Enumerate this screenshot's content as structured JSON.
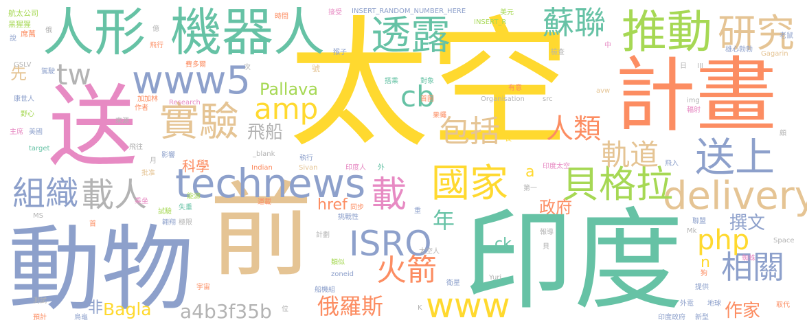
{
  "words": [
    {
      "text": "太空",
      "color": "#ffd92f"
    },
    {
      "text": "印度",
      "color": "#66c2a5"
    },
    {
      "text": "送",
      "color": "#e78ac3"
    },
    {
      "text": "前",
      "color": "#e5c494"
    },
    {
      "text": "動物",
      "color": "#8da0cb"
    },
    {
      "text": "計畫",
      "color": "#fc8d62"
    },
    {
      "text": "人形",
      "color": "#66c2a5"
    },
    {
      "text": "機器人",
      "color": "#66c2a5"
    },
    {
      "text": "推動",
      "color": "#a6d854"
    },
    {
      "text": "研究",
      "color": "#e5c494"
    },
    {
      "text": "technews",
      "color": "#8da0cb"
    },
    {
      "text": "delivery",
      "color": "#e5c494"
    },
    {
      "text": "送上",
      "color": "#8da0cb"
    },
    {
      "text": "貝格拉",
      "color": "#a6d854"
    },
    {
      "text": "國家",
      "color": "#ffd92f"
    },
    {
      "text": "實驗",
      "color": "#e5c494"
    },
    {
      "text": "www5",
      "color": "#8da0cb"
    },
    {
      "text": "透露",
      "color": "#66c2a5"
    },
    {
      "text": "蘇聯",
      "color": "#66c2a5"
    },
    {
      "text": "組織",
      "color": "#8da0cb"
    },
    {
      "text": "載人",
      "color": "#b3b3b3"
    },
    {
      "text": "ISRO",
      "color": "#8da0cb"
    },
    {
      "text": "www",
      "color": "#ffd92f"
    },
    {
      "text": "火箭",
      "color": "#fc8d62"
    },
    {
      "text": "相關",
      "color": "#8da0cb"
    },
    {
      "text": "載",
      "color": "#e78ac3"
    },
    {
      "text": "包括",
      "color": "#e5c494"
    },
    {
      "text": "人類",
      "color": "#fc8d62"
    },
    {
      "text": "軌道",
      "color": "#e5c494"
    },
    {
      "text": "amp",
      "color": "#ffd92f"
    },
    {
      "text": "php",
      "color": "#ffd92f"
    },
    {
      "text": "cb",
      "color": "#66c2a5"
    },
    {
      "text": "tw",
      "color": "#b3b3b3"
    },
    {
      "text": "飛船",
      "color": "#b3b3b3"
    },
    {
      "text": "俄羅斯",
      "color": "#fc8d62"
    },
    {
      "text": "a4b3f35b",
      "color": "#b3b3b3"
    },
    {
      "text": "Bagla",
      "color": "#ffd92f"
    },
    {
      "text": "非",
      "color": "#8da0cb"
    },
    {
      "text": "撰文",
      "color": "#8da0cb"
    },
    {
      "text": "作家",
      "color": "#fc8d62"
    },
    {
      "text": "年",
      "color": "#66c2a5"
    },
    {
      "text": "政府",
      "color": "#fc8d62"
    },
    {
      "text": "Pallava",
      "color": "#a6d854"
    },
    {
      "text": "href",
      "color": "#fc8d62"
    },
    {
      "text": "科學",
      "color": "#fc8d62"
    },
    {
      "text": "先",
      "color": "#e5c494"
    },
    {
      "text": "ck",
      "color": "#66c2a5"
    },
    {
      "text": "n",
      "color": "#ffd92f"
    },
    {
      "text": "a",
      "color": "#ffd92f"
    },
    {
      "text": "號",
      "color": "#e5c494"
    },
    {
      "text": "航太公司",
      "color": "#a6d854"
    },
    {
      "text": "黑猩猩",
      "color": "#a6d854"
    },
    {
      "text": "席萬",
      "color": "#fc8d62"
    },
    {
      "text": "說",
      "color": "#8da0cb"
    },
    {
      "text": "GSLV",
      "color": "#b3b3b3"
    },
    {
      "text": "駕駛",
      "color": "#8da0cb"
    },
    {
      "text": "康世人",
      "color": "#8da0cb"
    },
    {
      "text": "野心",
      "color": "#a6d854"
    },
    {
      "text": "主席",
      "color": "#e78ac3"
    },
    {
      "text": "美國",
      "color": "#8da0cb"
    },
    {
      "text": "target",
      "color": "#66c2a5"
    },
    {
      "text": "加加林",
      "color": "#fc8d62"
    },
    {
      "text": "作者",
      "color": "#fc8d62"
    },
    {
      "text": "Research",
      "color": "#e78ac3"
    },
    {
      "text": "來源",
      "color": "#b3b3b3"
    },
    {
      "text": "飛往",
      "color": "#b3b3b3"
    },
    {
      "text": "影響",
      "color": "#8da0cb"
    },
    {
      "text": "批准",
      "color": "#e5c494"
    },
    {
      "text": "乘坐",
      "color": "#e78ac3"
    },
    {
      "text": "試驗",
      "color": "#a6d854"
    },
    {
      "text": "失重",
      "color": "#66c2a5"
    },
    {
      "text": "翱翔",
      "color": "#8da0cb"
    },
    {
      "text": "極限",
      "color": "#b3b3b3"
    },
    {
      "text": "能源",
      "color": "#a6d854"
    },
    {
      "text": "運載",
      "color": "#fc8d62"
    },
    {
      "text": "計劃",
      "color": "#b3b3b3"
    },
    {
      "text": "類似",
      "color": "#a6d854"
    },
    {
      "text": "zoneid",
      "color": "#8da0cb"
    },
    {
      "text": "船機組",
      "color": "#8da0cb"
    },
    {
      "text": "宇宙",
      "color": "#fc8d62"
    },
    {
      "text": "測試",
      "color": "#b3b3b3"
    },
    {
      "text": "預計",
      "color": "#fc8d62"
    },
    {
      "text": "烏龜",
      "color": "#8da0cb"
    },
    {
      "text": "位",
      "color": "#b3b3b3"
    },
    {
      "text": "MS",
      "color": "#b3b3b3"
    },
    {
      "text": "首",
      "color": "#fc8d62"
    },
    {
      "text": "俄",
      "color": "#b3b3b3"
    },
    {
      "text": "億",
      "color": "#b3b3b3"
    },
    {
      "text": "飛行",
      "color": "#fc8d62"
    },
    {
      "text": "費多爾",
      "color": "#fc8d62"
    },
    {
      "text": "次",
      "color": "#b3b3b3"
    },
    {
      "text": "時間",
      "color": "#fc8d62"
    },
    {
      "text": "接受",
      "color": "#e78ac3"
    },
    {
      "text": "INSERT_RANDOM_NUMBER_HERE",
      "color": "#8da0cb"
    },
    {
      "text": "INSERT_R",
      "color": "#a6d854"
    },
    {
      "text": "美元",
      "color": "#a6d854"
    },
    {
      "text": "猴子",
      "color": "#8da0cb"
    },
    {
      "text": "搭乘",
      "color": "#66c2a5"
    },
    {
      "text": "對象",
      "color": "#66c2a5"
    },
    {
      "text": "首圖",
      "color": "#fc8d62"
    },
    {
      "text": "Organisation",
      "color": "#b3b3b3"
    },
    {
      "text": "src",
      "color": "#b3b3b3"
    },
    {
      "text": "果蠅",
      "color": "#fc8d62"
    },
    {
      "text": "長",
      "color": "#ffd92f"
    },
    {
      "text": "有意",
      "color": "#fc8d62"
    },
    {
      "text": "檢查",
      "color": "#b3b3b3"
    },
    {
      "text": "中",
      "color": "#e78ac3"
    },
    {
      "text": "日",
      "color": "#b3b3b3"
    },
    {
      "text": "III",
      "color": "#b3b3b3"
    },
    {
      "text": "雄心勃勃",
      "color": "#8da0cb"
    },
    {
      "text": "Gagarin",
      "color": "#e5c494"
    },
    {
      "text": "老鼠",
      "color": "#8da0cb"
    },
    {
      "text": "avw",
      "color": "#e5c494"
    },
    {
      "text": "img",
      "color": "#b3b3b3"
    },
    {
      "text": "輻射",
      "color": "#e78ac3"
    },
    {
      "text": "頗",
      "color": "#b3b3b3"
    },
    {
      "text": "飛入",
      "color": "#8da0cb"
    },
    {
      "text": "印度太空",
      "color": "#e78ac3"
    },
    {
      "text": "第一",
      "color": "#b3b3b3"
    },
    {
      "text": "印度人",
      "color": "#e78ac3"
    },
    {
      "text": "外",
      "color": "#66c2a5"
    },
    {
      "text": "Indian",
      "color": "#fc8d62"
    },
    {
      "text": "Sivan",
      "color": "#e5c494"
    },
    {
      "text": "_blank",
      "color": "#b3b3b3"
    },
    {
      "text": "執行",
      "color": "#8da0cb"
    },
    {
      "text": "同步",
      "color": "#fc8d62"
    },
    {
      "text": "挑戰性",
      "color": "#8da0cb"
    },
    {
      "text": "重",
      "color": "#8da0cb"
    },
    {
      "text": "月",
      "color": "#b3b3b3"
    },
    {
      "text": "聯盟",
      "color": "#8da0cb"
    },
    {
      "text": "Mk",
      "color": "#b3b3b3"
    },
    {
      "text": "報導",
      "color": "#b3b3b3"
    },
    {
      "text": "貝",
      "color": "#b3b3b3"
    },
    {
      "text": "太空人",
      "color": "#b3b3b3"
    },
    {
      "text": "Space",
      "color": "#b3b3b3"
    },
    {
      "text": "蜘蛛",
      "color": "#e78ac3"
    },
    {
      "text": "狗",
      "color": "#fc8d62"
    },
    {
      "text": "Yuri",
      "color": "#b3b3b3"
    },
    {
      "text": "衛星",
      "color": "#8da0cb"
    },
    {
      "text": "提供",
      "color": "#8da0cb"
    },
    {
      "text": "外電",
      "color": "#8da0cb"
    },
    {
      "text": "地球",
      "color": "#8da0cb"
    },
    {
      "text": "取代",
      "color": "#fc8d62"
    },
    {
      "text": "印度政府",
      "color": "#8da0cb"
    },
    {
      "text": "新型",
      "color": "#8da0cb"
    },
    {
      "text": "K",
      "color": "#b3b3b3"
    }
  ]
}
